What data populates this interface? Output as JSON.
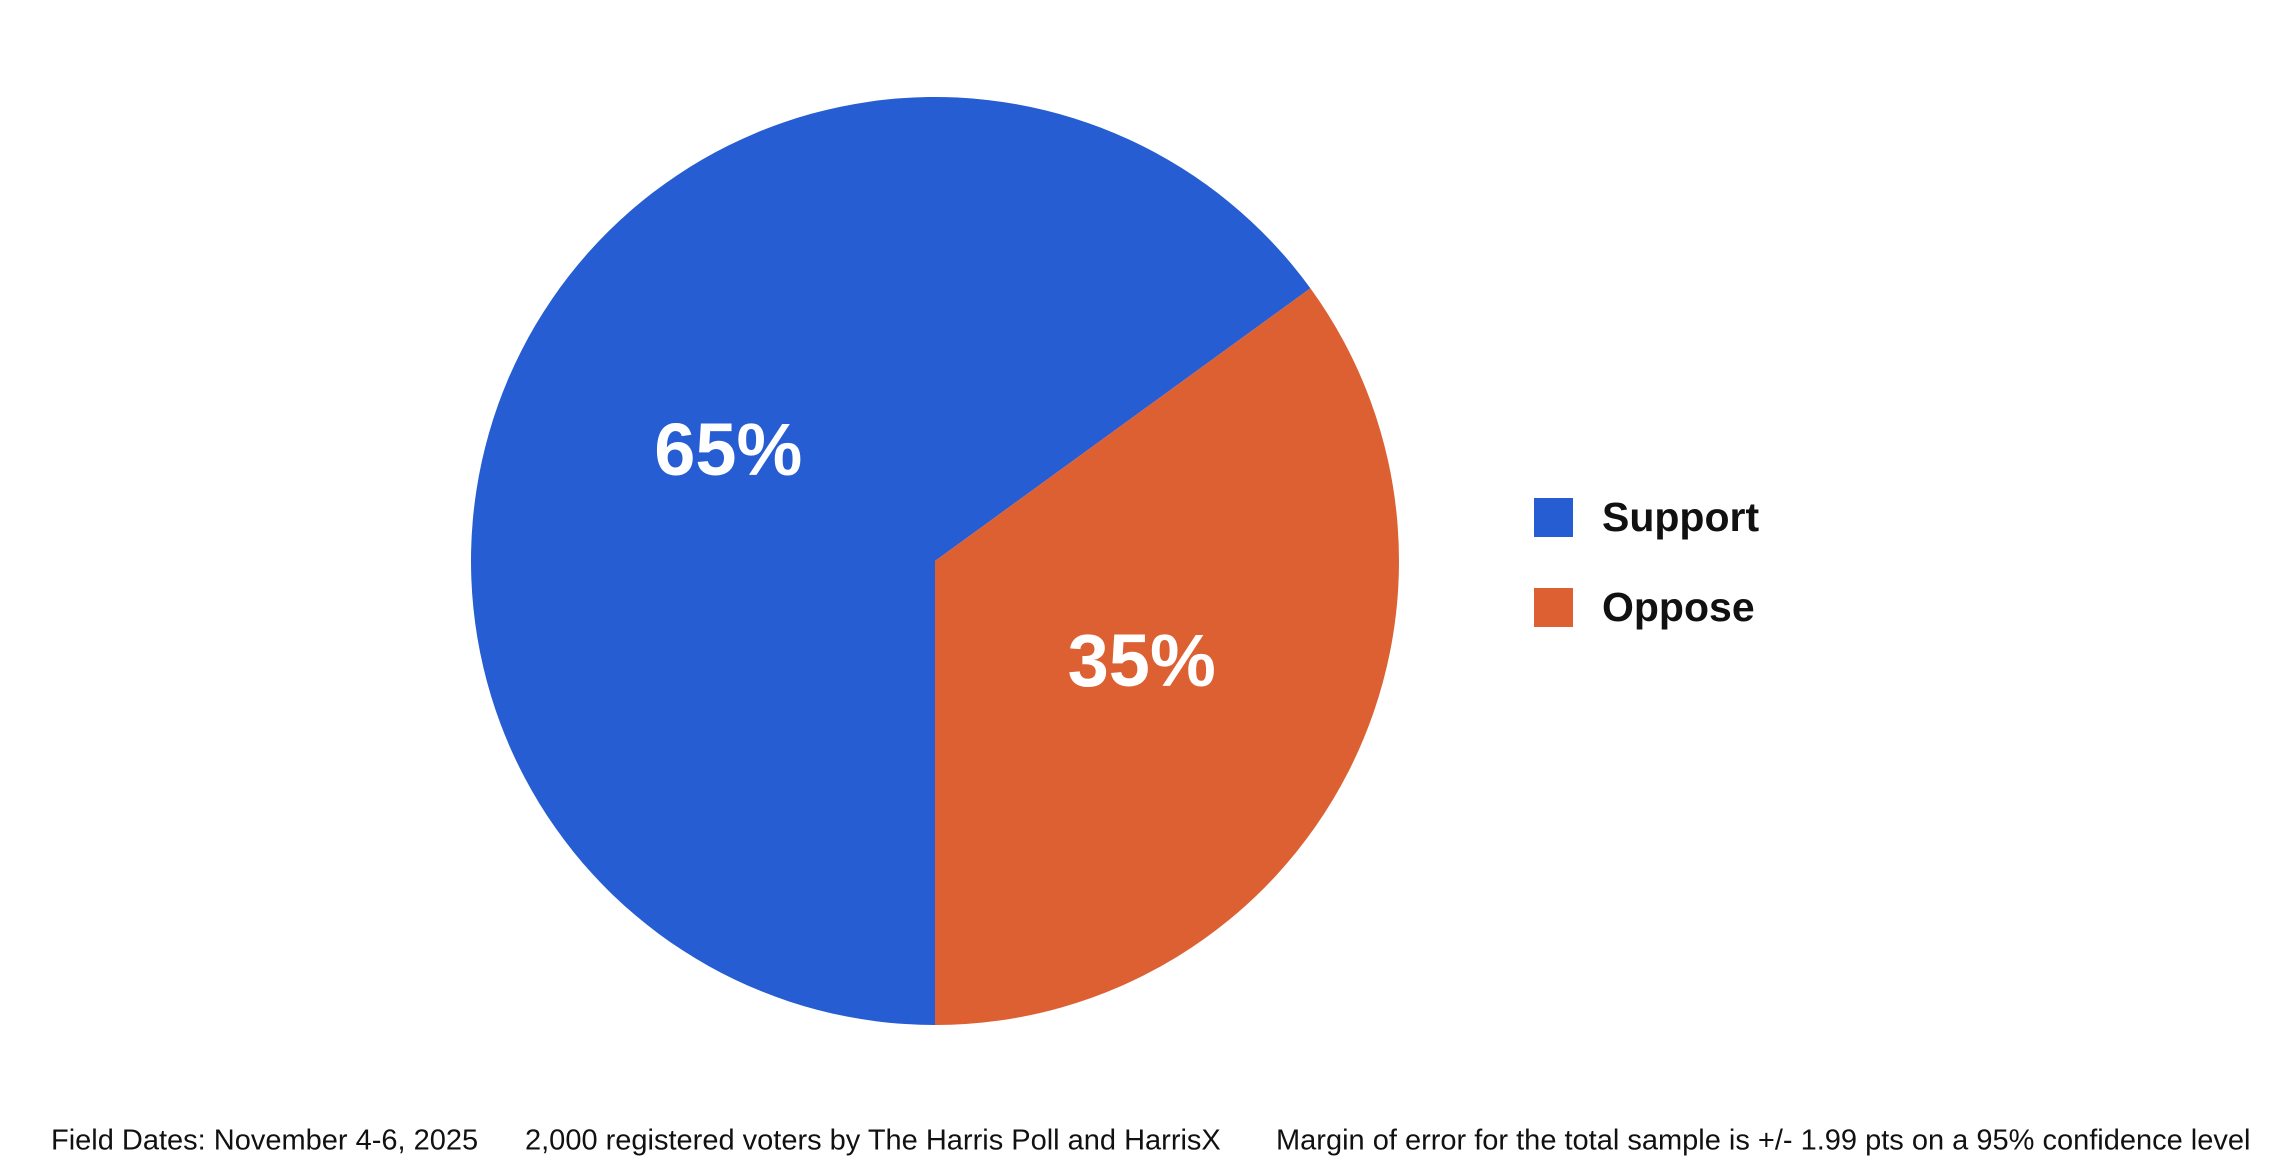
{
  "chart_data": {
    "type": "pie",
    "categories": [
      "Support",
      "Oppose"
    ],
    "values": [
      65,
      35
    ],
    "value_labels": [
      "65%",
      "35%"
    ],
    "colors": [
      "#265dd3",
      "#dd6033"
    ],
    "start_angle": 180,
    "legend": "right",
    "footnotes": [
      "Field Dates: November 4-6, 2025",
      "2,000 registered voters by The Harris Poll and HarrisX",
      "Margin of error for the total sample is +/- 1.99 pts on a 95% confidence level"
    ]
  }
}
